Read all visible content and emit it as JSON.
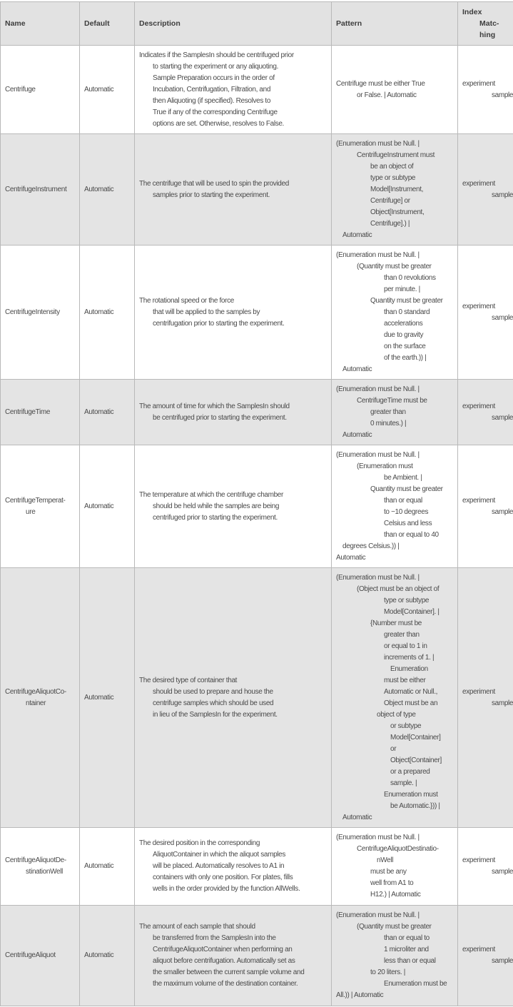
{
  "header": {
    "name": "Name",
    "default": "Default",
    "description": "Description",
    "pattern": "Pattern",
    "index_matching": [
      "Index",
      "Matc-",
      "hing"
    ]
  },
  "rows": [
    {
      "name": [
        "Centrifuge"
      ],
      "default": "Automatic",
      "description": [
        "Indicates if the SamplesIn should be centrifuged prior",
        "to starting the experiment or any aliquoting.",
        "Sample Preparation occurs in the order of",
        "Incubation, Centrifugation, Filtration, and",
        "then Aliquoting (if specified).  Resolves to",
        "True if any of the corresponding Centrifuge",
        "options are set. Otherwise, resolves to False."
      ],
      "pattern": [
        "Centrifuge must be either True",
        "or False. | Automatic"
      ],
      "index_matching": [
        "experiment",
        "samples"
      ]
    },
    {
      "name": [
        "CentrifugeInstrument"
      ],
      "default": "Automatic",
      "description": [
        "The centrifuge that will be used to spin the provided",
        "samples prior to starting the experiment."
      ],
      "pattern": [
        "(Enumeration must be Null. |",
        "CentrifugeInstrument must",
        "be an object of",
        "type or subtype",
        "Model[Instrument,",
        "Centrifuge] or",
        "Object[Instrument,",
        "Centrifuge].) |",
        "Automatic"
      ],
      "index_matching": [
        "experiment",
        "samples"
      ]
    },
    {
      "name": [
        "CentrifugeIntensity"
      ],
      "default": "Automatic",
      "description": [
        "The rotational speed or the force",
        "that will be applied to the samples by",
        "centrifugation prior to starting the experiment."
      ],
      "pattern": [
        "(Enumeration must be Null. |",
        "(Quantity must be greater",
        "than 0 revolutions",
        "per minute. |",
        "Quantity must be greater",
        "than 0 standard",
        "accelerations",
        "due to gravity",
        "on the surface",
        "of the earth.)) |",
        "Automatic"
      ],
      "index_matching": [
        "experiment",
        "samples"
      ]
    },
    {
      "name": [
        "CentrifugeTime"
      ],
      "default": "Automatic",
      "description": [
        "The amount of time for which the SamplesIn should",
        "be centrifuged prior to starting the experiment."
      ],
      "pattern": [
        "(Enumeration must be Null. |",
        "CentrifugeTime must be",
        "greater than",
        "0 minutes.) |",
        "Automatic"
      ],
      "index_matching": [
        "experiment",
        "samples"
      ]
    },
    {
      "name": [
        "CentrifugeTemperat-",
        "ure"
      ],
      "default": "Automatic",
      "description": [
        "The temperature at which the centrifuge chamber",
        "should be held while the samples are being",
        "centrifuged prior to starting the experiment."
      ],
      "pattern": [
        "(Enumeration must be Null. |",
        "(Enumeration must",
        "be Ambient. |",
        "Quantity must be greater",
        "than or equal",
        "to −10 degrees",
        "Celsius and less",
        "than or equal to 40",
        "degrees Celsius.)) |",
        "Automatic"
      ],
      "index_matching": [
        "experiment",
        "samples"
      ]
    },
    {
      "name": [
        "CentrifugeAliquotCo-",
        "ntainer"
      ],
      "default": "Automatic",
      "description": [
        "The desired type of container that",
        "should be used to prepare and house the",
        "centrifuge samples which should be used",
        "in lieu of the SamplesIn for the experiment."
      ],
      "pattern": [
        "(Enumeration must be Null. |",
        "(Object must be an object of",
        "type or subtype",
        "Model[Container]. |",
        "{Number must be",
        "greater than",
        "or equal to 1 in",
        "increments of 1. |",
        "Enumeration",
        "must be either",
        "Automatic or Null.,",
        "Object must be an",
        "object of type",
        "or subtype",
        "Model[Container]",
        "or",
        "Object[Container]",
        "or a prepared",
        "sample. |",
        "Enumeration must",
        "be Automatic.})) |",
        "Automatic"
      ],
      "index_matching": [
        "experiment",
        "samples"
      ]
    },
    {
      "name": [
        "CentrifugeAliquotDe-",
        "stinationWell"
      ],
      "default": "Automatic",
      "description": [
        "The desired position in the corresponding",
        "AliquotContainer in which the aliquot samples",
        "will be placed.  Automatically resolves to A1 in",
        "containers with only one position.  For plates, fills",
        "wells in the order provided by the function AllWells."
      ],
      "pattern": [
        "(Enumeration must be Null. |",
        "CentrifugeAliquotDestinatio-",
        "nWell",
        "must be any",
        "well from A1 to",
        "H12.) | Automatic"
      ],
      "index_matching": [
        "experiment",
        "samples"
      ]
    },
    {
      "name": [
        "CentrifugeAliquot"
      ],
      "default": "Automatic",
      "description": [
        "The amount of each sample that should",
        "be transferred from the SamplesIn into the",
        "CentrifugeAliquotContainer when performing an",
        "aliquot before centrifugation.  Automatically set as",
        "the smaller between the current sample volume and",
        "the maximum volume of the destination container."
      ],
      "pattern": [
        "(Enumeration must be Null. |",
        "(Quantity must be greater",
        "than or equal to",
        "1 microliter and",
        "less than or equal",
        "to 20 liters. |",
        "Enumeration must be",
        "All.)) | Automatic"
      ],
      "index_matching": [
        "experiment",
        "samples"
      ]
    }
  ]
}
